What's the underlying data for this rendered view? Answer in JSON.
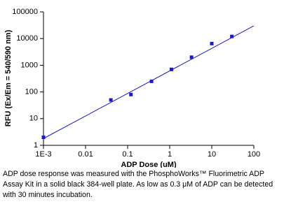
{
  "chart_data": {
    "type": "scatter",
    "x_label": "ADP Dose (uM)",
    "y_label": "RFU (Ex/Em = 540/590 nm)",
    "log_x": true,
    "log_y": true,
    "xlim": [
      0.001,
      100
    ],
    "xticks": [
      {
        "value": 0.001,
        "label": "1E-3"
      },
      0.01,
      0.1,
      1,
      10,
      100
    ],
    "ylim": [
      1,
      100000
    ],
    "yticks": [
      1,
      10,
      100,
      1000,
      10000,
      100000
    ],
    "points": {
      "color": "#1a1acc",
      "x": [
        0.001,
        0.04,
        0.12,
        0.37,
        1.1,
        3.3,
        10,
        30
      ],
      "y": [
        2,
        50,
        80,
        250,
        700,
        2000,
        6500,
        12000
      ]
    },
    "fit_line": {
      "color": "#1a1acc",
      "x": [
        0.001,
        100
      ],
      "y": [
        1.8,
        30000
      ]
    }
  },
  "caption": "ADP dose response was measured with the PhosphoWorks™ Fluorimetric ADP Assay Kit in a solid black 384-well plate. As low as 0.3 μM of ADP can be detected with 30 minutes incubation."
}
